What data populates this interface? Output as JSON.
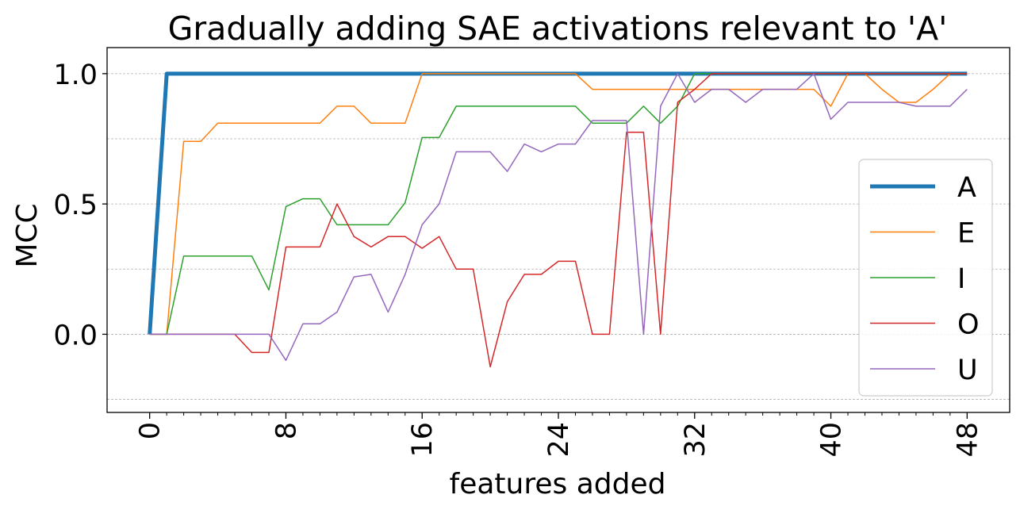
{
  "chart_data": {
    "type": "line",
    "title": "Gradually adding SAE activations relevant to 'A'",
    "xlabel": "features added",
    "ylabel": "MCC",
    "xlim": [
      -2.5,
      50.5
    ],
    "ylim": [
      -0.3,
      1.1
    ],
    "x_ticks": [
      0,
      8,
      16,
      24,
      32,
      40,
      48
    ],
    "x_tick_labels": [
      "0",
      "8",
      "16",
      "24",
      "32",
      "40",
      "48"
    ],
    "y_ticks": [
      0.0,
      0.5,
      1.0
    ],
    "y_tick_labels": [
      "0.0",
      "0.5",
      "1.0"
    ],
    "grid": "horizontal dashed, every 0.25",
    "legend": "right",
    "x": [
      0,
      1,
      2,
      3,
      4,
      5,
      6,
      7,
      8,
      9,
      10,
      11,
      12,
      13,
      14,
      15,
      16,
      17,
      18,
      19,
      20,
      21,
      22,
      23,
      24,
      25,
      26,
      27,
      28,
      29,
      30,
      31,
      32,
      33,
      34,
      35,
      36,
      37,
      38,
      39,
      40,
      41,
      42,
      43,
      44,
      45,
      46,
      47,
      48
    ],
    "series": [
      {
        "name": "A",
        "color": "#1f77b4",
        "width": 5,
        "values": [
          0,
          1,
          1,
          1,
          1,
          1,
          1,
          1,
          1,
          1,
          1,
          1,
          1,
          1,
          1,
          1,
          1,
          1,
          1,
          1,
          1,
          1,
          1,
          1,
          1,
          1,
          1,
          1,
          1,
          1,
          1,
          1,
          1,
          1,
          1,
          1,
          1,
          1,
          1,
          1,
          1,
          1,
          1,
          1,
          1,
          1,
          1,
          1,
          1
        ]
      },
      {
        "name": "E",
        "color": "#ff7f0e",
        "width": 1.5,
        "values": [
          0,
          0,
          0.74,
          0.74,
          0.81,
          0.81,
          0.81,
          0.81,
          0.81,
          0.81,
          0.81,
          0.875,
          0.875,
          0.81,
          0.81,
          0.81,
          1,
          1,
          1,
          1,
          1,
          1,
          1,
          1,
          1,
          1,
          0.94,
          0.94,
          0.94,
          0.94,
          0.94,
          0.94,
          0.94,
          0.94,
          0.94,
          0.94,
          0.94,
          0.94,
          0.94,
          0.94,
          0.875,
          1,
          1,
          0.94,
          0.89,
          0.89,
          0.94,
          1,
          1
        ]
      },
      {
        "name": "I",
        "color": "#2ca02c",
        "width": 1.5,
        "values": [
          0,
          0,
          0.3,
          0.3,
          0.3,
          0.3,
          0.3,
          0.17,
          0.49,
          0.52,
          0.52,
          0.42,
          0.42,
          0.42,
          0.42,
          0.505,
          0.755,
          0.755,
          0.875,
          0.875,
          0.875,
          0.875,
          0.875,
          0.875,
          0.875,
          0.875,
          0.81,
          0.81,
          0.81,
          0.875,
          0.81,
          0.875,
          1,
          1,
          1,
          1,
          1,
          1,
          1,
          1,
          1,
          1,
          1,
          1,
          1,
          1,
          1,
          1,
          1
        ]
      },
      {
        "name": "O",
        "color": "#d62728",
        "width": 1.5,
        "values": [
          0,
          0,
          0,
          0,
          0,
          0,
          -0.07,
          -0.07,
          0.335,
          0.335,
          0.335,
          0.5,
          0.375,
          0.335,
          0.375,
          0.375,
          0.33,
          0.375,
          0.25,
          0.25,
          -0.125,
          0.125,
          0.23,
          0.23,
          0.28,
          0.28,
          0,
          0,
          0.775,
          0.775,
          0,
          0.89,
          0.94,
          1,
          1,
          1,
          1,
          1,
          1,
          1,
          1,
          1,
          1,
          1,
          1,
          1,
          1,
          1,
          1
        ]
      },
      {
        "name": "U",
        "color": "#9467bd",
        "width": 1.5,
        "values": [
          0,
          0,
          0,
          0,
          0,
          0,
          0,
          0,
          -0.1,
          0.04,
          0.04,
          0.085,
          0.22,
          0.23,
          0.085,
          0.23,
          0.42,
          0.5,
          0.7,
          0.7,
          0.7,
          0.625,
          0.73,
          0.7,
          0.73,
          0.73,
          0.82,
          0.82,
          0.82,
          0,
          0.875,
          1,
          0.89,
          0.94,
          0.94,
          0.89,
          0.94,
          0.94,
          0.94,
          1,
          0.825,
          0.89,
          0.89,
          0.89,
          0.89,
          0.875,
          0.875,
          0.875,
          0.94
        ]
      }
    ]
  }
}
